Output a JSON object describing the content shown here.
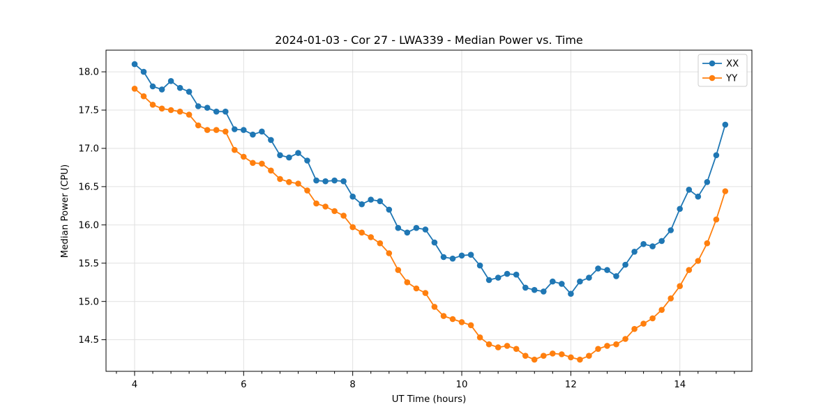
{
  "chart_data": {
    "type": "line",
    "title": "2024-01-03 - Cor 27 - LWA339 - Median Power vs. Time",
    "xlabel": "UT Time (hours)",
    "ylabel": "Median Power (CPU)",
    "xlim": [
      3.476,
      15.321
    ],
    "ylim": [
      14.087,
      18.283
    ],
    "xticks": [
      4,
      6,
      8,
      10,
      12,
      14
    ],
    "yticks": [
      14.5,
      15.0,
      15.5,
      16.0,
      16.5,
      17.0,
      17.5,
      18.0
    ],
    "x_minor_step": 0.3333,
    "grid": "major",
    "grid_color": "#e0e0e0",
    "spine_color": "#000000",
    "legend_position": "upper right",
    "marker": "circle",
    "x": [
      4.0,
      4.167,
      4.333,
      4.5,
      4.667,
      4.833,
      5.0,
      5.167,
      5.333,
      5.5,
      5.667,
      5.833,
      6.0,
      6.167,
      6.333,
      6.5,
      6.667,
      6.833,
      7.0,
      7.167,
      7.333,
      7.5,
      7.667,
      7.833,
      8.0,
      8.167,
      8.333,
      8.5,
      8.667,
      8.833,
      9.0,
      9.167,
      9.333,
      9.5,
      9.667,
      9.833,
      10.0,
      10.167,
      10.333,
      10.5,
      10.667,
      10.833,
      11.0,
      11.167,
      11.333,
      11.5,
      11.667,
      11.833,
      12.0,
      12.167,
      12.333,
      12.5,
      12.667,
      12.833,
      13.0,
      13.167,
      13.333,
      13.5,
      13.667,
      13.833,
      14.0,
      14.167,
      14.333,
      14.5,
      14.667,
      14.833
    ],
    "series": [
      {
        "name": "XX",
        "color": "#1f77b4",
        "values": [
          18.1,
          18.0,
          17.81,
          17.77,
          17.88,
          17.79,
          17.74,
          17.55,
          17.53,
          17.48,
          17.48,
          17.25,
          17.24,
          17.18,
          17.22,
          17.11,
          16.91,
          16.88,
          16.94,
          16.84,
          16.58,
          16.57,
          16.58,
          16.57,
          16.37,
          16.27,
          16.33,
          16.31,
          16.2,
          15.96,
          15.9,
          15.96,
          15.94,
          15.77,
          15.58,
          15.56,
          15.6,
          15.61,
          15.47,
          15.28,
          15.31,
          15.36,
          15.35,
          15.18,
          15.15,
          15.13,
          15.26,
          15.23,
          15.1,
          15.26,
          15.31,
          15.43,
          15.41,
          15.33,
          15.48,
          15.65,
          15.75,
          15.72,
          15.79,
          15.93,
          16.21,
          16.46,
          16.37,
          16.56,
          16.91,
          17.31
        ]
      },
      {
        "name": "YY",
        "color": "#ff7f0e",
        "values": [
          17.78,
          17.68,
          17.57,
          17.52,
          17.5,
          17.48,
          17.44,
          17.3,
          17.24,
          17.24,
          17.22,
          16.98,
          16.89,
          16.81,
          16.8,
          16.71,
          16.6,
          16.56,
          16.54,
          16.45,
          16.28,
          16.24,
          16.18,
          16.12,
          15.97,
          15.9,
          15.84,
          15.76,
          15.63,
          15.41,
          15.25,
          15.17,
          15.11,
          14.93,
          14.81,
          14.77,
          14.73,
          14.69,
          14.53,
          14.44,
          14.4,
          14.42,
          14.38,
          14.29,
          14.24,
          14.29,
          14.32,
          14.31,
          14.27,
          14.24,
          14.29,
          14.38,
          14.42,
          14.44,
          14.51,
          14.64,
          14.71,
          14.78,
          14.89,
          15.04,
          15.2,
          15.41,
          15.53,
          15.76,
          16.07,
          16.44
        ]
      }
    ]
  }
}
